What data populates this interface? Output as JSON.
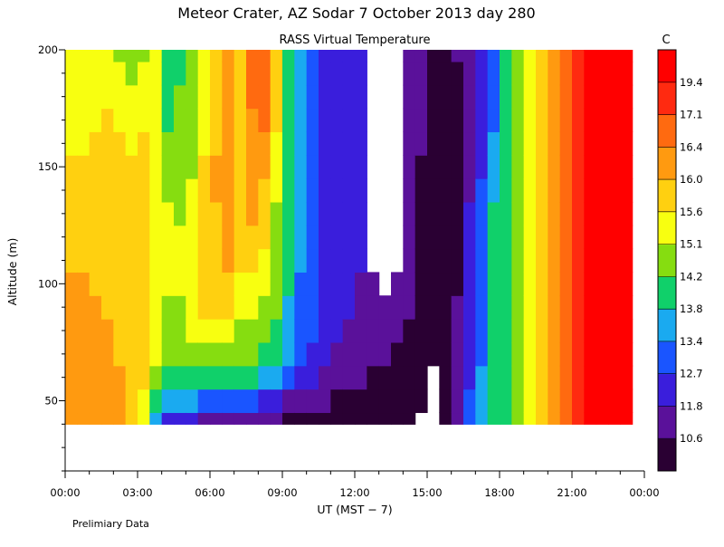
{
  "header": {
    "title": "Meteor Crater, AZ  Sodar   7 October 2013  day 280",
    "subtitle": "RASS Virtual Temperature"
  },
  "footer": {
    "note": "Prelimiary Data"
  },
  "chart_data": {
    "type": "heatmap",
    "title": "Meteor Crater, AZ  Sodar   7 October 2013  day 280",
    "subtitle": "RASS Virtual Temperature",
    "xlabel": "UT  (MST − 7)",
    "ylabel": "Altitude (m)",
    "xlim": [
      0,
      24
    ],
    "ylim": [
      20,
      200
    ],
    "x_ticks": [
      "00:00",
      "03:00",
      "06:00",
      "09:00",
      "12:00",
      "15:00",
      "18:00",
      "21:00",
      "00:00"
    ],
    "y_ticks": [
      50,
      100,
      150,
      200
    ],
    "colorbar": {
      "unit": "C",
      "labels": [
        "10.6",
        "11.8",
        "12.7",
        "13.4",
        "13.8",
        "14.2",
        "15.1",
        "15.6",
        "16.0",
        "16.4",
        "17.1",
        "19.4"
      ],
      "colors": [
        "#2a0033",
        "#5a119a",
        "#3a1edc",
        "#1a55ff",
        "#1aaaf0",
        "#10d06a",
        "#86dd10",
        "#f8ff10",
        "#ffd010",
        "#ff9a10",
        "#ff6a10",
        "#ff2a10",
        "#ff0000"
      ]
    },
    "profile_times": [
      0.0,
      0.5,
      1.0,
      1.5,
      2.0,
      2.5,
      3.0,
      3.5,
      4.0,
      4.5,
      5.0,
      5.5,
      6.0,
      6.5,
      7.0,
      7.5,
      8.0,
      8.5,
      9.0,
      9.5,
      10.0,
      10.5,
      11.0,
      11.5,
      12.0,
      12.5,
      13.0,
      13.5,
      14.0,
      14.5,
      15.0,
      15.5,
      16.0,
      16.5,
      17.0,
      17.5,
      18.0,
      18.5,
      19.0,
      19.5,
      20.0,
      20.5,
      21.0,
      21.5,
      22.0,
      22.5,
      23.0
    ],
    "altitudes": [
      40,
      50,
      60,
      70,
      80,
      90,
      100,
      110,
      120,
      130,
      140,
      150,
      160,
      170,
      180,
      190,
      200
    ],
    "category_index_grid": [
      [
        9,
        9,
        9,
        9,
        9,
        9,
        9,
        8,
        8,
        8,
        8,
        8,
        7,
        7,
        7,
        7,
        7
      ],
      [
        9,
        9,
        9,
        9,
        9,
        9,
        9,
        8,
        8,
        8,
        8,
        8,
        7,
        7,
        7,
        7,
        7
      ],
      [
        9,
        9,
        9,
        9,
        9,
        9,
        8,
        8,
        8,
        8,
        8,
        8,
        8,
        7,
        7,
        7,
        7
      ],
      [
        9,
        9,
        9,
        9,
        9,
        8,
        8,
        8,
        8,
        8,
        8,
        8,
        8,
        8,
        7,
        7,
        7
      ],
      [
        9,
        9,
        9,
        8,
        8,
        8,
        8,
        8,
        8,
        8,
        8,
        8,
        8,
        7,
        7,
        7,
        6
      ],
      [
        8,
        8,
        8,
        8,
        8,
        8,
        8,
        8,
        8,
        8,
        8,
        8,
        7,
        7,
        7,
        6,
        6
      ],
      [
        7,
        7,
        8,
        8,
        8,
        8,
        8,
        8,
        8,
        8,
        8,
        8,
        8,
        7,
        7,
        7,
        6
      ],
      [
        4,
        5,
        6,
        7,
        7,
        7,
        7,
        7,
        7,
        7,
        7,
        7,
        7,
        7,
        7,
        7,
        7
      ],
      [
        2,
        4,
        5,
        6,
        6,
        6,
        7,
        7,
        7,
        7,
        6,
        6,
        6,
        5,
        5,
        5,
        5
      ],
      [
        2,
        4,
        5,
        6,
        6,
        6,
        7,
        7,
        7,
        6,
        6,
        6,
        6,
        6,
        6,
        5,
        5
      ],
      [
        2,
        4,
        5,
        6,
        7,
        7,
        7,
        7,
        7,
        7,
        7,
        6,
        6,
        6,
        6,
        6,
        6
      ],
      [
        1,
        3,
        5,
        6,
        7,
        8,
        8,
        8,
        8,
        8,
        8,
        8,
        7,
        7,
        7,
        7,
        7
      ],
      [
        1,
        3,
        5,
        6,
        7,
        8,
        8,
        8,
        8,
        8,
        9,
        9,
        8,
        8,
        8,
        8,
        8
      ],
      [
        1,
        3,
        5,
        6,
        7,
        8,
        8,
        9,
        9,
        9,
        9,
        9,
        9,
        9,
        9,
        9,
        9
      ],
      [
        1,
        3,
        5,
        6,
        6,
        7,
        7,
        8,
        8,
        8,
        8,
        8,
        8,
        8,
        8,
        8,
        8
      ],
      [
        1,
        3,
        5,
        6,
        6,
        7,
        7,
        8,
        8,
        9,
        9,
        9,
        9,
        9,
        10,
        10,
        10
      ],
      [
        1,
        2,
        4,
        5,
        6,
        6,
        7,
        7,
        8,
        8,
        8,
        9,
        9,
        10,
        10,
        10,
        10
      ],
      [
        1,
        2,
        4,
        5,
        5,
        6,
        6,
        6,
        6,
        6,
        7,
        7,
        7,
        8,
        8,
        8,
        8
      ],
      [
        0,
        1,
        3,
        4,
        4,
        4,
        5,
        5,
        5,
        5,
        5,
        5,
        5,
        5,
        5,
        5,
        5
      ],
      [
        0,
        1,
        2,
        3,
        3,
        3,
        3,
        4,
        4,
        4,
        4,
        4,
        4,
        4,
        4,
        4,
        4
      ],
      [
        0,
        1,
        2,
        2,
        3,
        3,
        3,
        3,
        3,
        3,
        3,
        3,
        3,
        3,
        3,
        3,
        3
      ],
      [
        0,
        1,
        1,
        2,
        2,
        2,
        2,
        2,
        2,
        2,
        2,
        2,
        2,
        2,
        2,
        2,
        2
      ],
      [
        0,
        0,
        1,
        1,
        2,
        2,
        2,
        2,
        2,
        2,
        2,
        2,
        2,
        2,
        2,
        2,
        2
      ],
      [
        0,
        0,
        1,
        1,
        1,
        2,
        2,
        2,
        2,
        2,
        2,
        2,
        2,
        2,
        2,
        2,
        2
      ],
      [
        0,
        0,
        1,
        1,
        1,
        1,
        1,
        2,
        2,
        2,
        2,
        2,
        2,
        2,
        2,
        2,
        2
      ],
      [
        0,
        0,
        0,
        1,
        1,
        1,
        1,
        -1,
        -1,
        -1,
        -1,
        -1,
        -1,
        -1,
        -1,
        -1,
        -1
      ],
      [
        0,
        0,
        0,
        1,
        1,
        1,
        -1,
        -1,
        -1,
        -1,
        -1,
        -1,
        -1,
        -1,
        -1,
        -1,
        -1
      ],
      [
        0,
        0,
        0,
        0,
        1,
        1,
        1,
        -1,
        -1,
        -1,
        -1,
        -1,
        -1,
        -1,
        -1,
        -1,
        -1
      ],
      [
        0,
        0,
        0,
        0,
        0,
        1,
        1,
        1,
        1,
        1,
        1,
        1,
        1,
        1,
        1,
        1,
        1
      ],
      [
        -1,
        0,
        0,
        0,
        0,
        0,
        0,
        0,
        0,
        0,
        0,
        0,
        1,
        1,
        1,
        1,
        1
      ],
      [
        -1,
        -1,
        -1,
        0,
        0,
        0,
        0,
        0,
        0,
        0,
        0,
        0,
        0,
        0,
        0,
        0,
        0
      ],
      [
        0,
        0,
        0,
        0,
        0,
        0,
        0,
        0,
        0,
        0,
        0,
        0,
        0,
        0,
        0,
        0,
        0
      ],
      [
        1,
        1,
        1,
        1,
        1,
        1,
        0,
        0,
        0,
        0,
        0,
        0,
        0,
        0,
        0,
        0,
        1
      ],
      [
        3,
        3,
        2,
        2,
        2,
        2,
        2,
        2,
        2,
        2,
        1,
        1,
        1,
        1,
        1,
        1,
        1
      ],
      [
        4,
        4,
        4,
        3,
        3,
        3,
        3,
        3,
        3,
        3,
        3,
        2,
        2,
        2,
        2,
        2,
        2
      ],
      [
        5,
        5,
        5,
        5,
        5,
        5,
        5,
        5,
        5,
        5,
        4,
        4,
        4,
        3,
        3,
        3,
        3
      ],
      [
        5,
        5,
        5,
        5,
        5,
        5,
        5,
        5,
        5,
        5,
        5,
        5,
        5,
        5,
        5,
        5,
        5
      ],
      [
        6,
        6,
        6,
        6,
        6,
        6,
        6,
        6,
        6,
        6,
        6,
        6,
        6,
        6,
        6,
        6,
        6
      ],
      [
        7,
        7,
        7,
        7,
        7,
        7,
        7,
        7,
        7,
        7,
        7,
        7,
        7,
        7,
        7,
        7,
        7
      ],
      [
        8,
        8,
        8,
        8,
        8,
        8,
        8,
        8,
        8,
        8,
        8,
        8,
        8,
        8,
        8,
        8,
        8
      ],
      [
        9,
        9,
        9,
        9,
        9,
        9,
        9,
        9,
        9,
        9,
        9,
        9,
        9,
        9,
        9,
        9,
        9
      ],
      [
        10,
        10,
        10,
        10,
        10,
        10,
        10,
        10,
        10,
        10,
        10,
        10,
        10,
        10,
        10,
        10,
        10
      ],
      [
        11,
        11,
        11,
        11,
        11,
        11,
        11,
        11,
        11,
        11,
        11,
        11,
        11,
        11,
        11,
        11,
        11
      ],
      [
        12,
        12,
        12,
        12,
        12,
        12,
        12,
        12,
        12,
        12,
        12,
        12,
        12,
        12,
        12,
        12,
        12
      ],
      [
        12,
        12,
        12,
        12,
        12,
        12,
        12,
        12,
        12,
        12,
        12,
        12,
        12,
        12,
        12,
        12,
        12
      ],
      [
        12,
        12,
        12,
        12,
        12,
        12,
        12,
        12,
        12,
        12,
        12,
        12,
        12,
        12,
        12,
        12,
        12
      ],
      [
        12,
        12,
        12,
        12,
        12,
        12,
        12,
        12,
        12,
        12,
        12,
        12,
        12,
        12,
        12,
        12,
        12
      ]
    ],
    "missing_value_index": -1
  }
}
